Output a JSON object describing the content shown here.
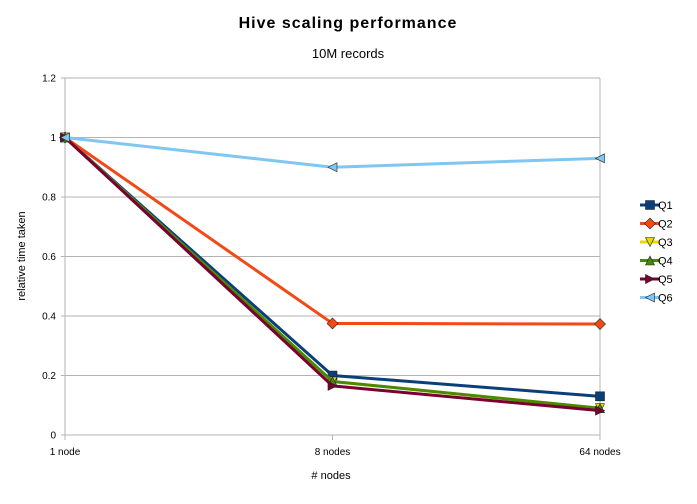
{
  "chart_data": {
    "type": "line",
    "title": "Hive scaling performance",
    "subtitle": "10M records",
    "xlabel": "# nodes",
    "ylabel": "relative time taken",
    "categories": [
      "1 node",
      "8 nodes",
      "64 nodes"
    ],
    "ylim": [
      0,
      1.2
    ],
    "yticks": [
      "0",
      "0.2",
      "0.4",
      "0.6",
      "0.8",
      "1",
      "1.2"
    ],
    "grid": "horizontal",
    "legend_position": "right",
    "series": [
      {
        "name": "Q1",
        "values": [
          1,
          0.2,
          0.13
        ],
        "color": "#0b3f7a",
        "marker": "square"
      },
      {
        "name": "Q2",
        "values": [
          1,
          0.375,
          0.373
        ],
        "color": "#f04a16",
        "marker": "diamond"
      },
      {
        "name": "Q3",
        "values": [
          1,
          0.18,
          0.09
        ],
        "color": "#e8d600",
        "marker": "triangle-down"
      },
      {
        "name": "Q4",
        "values": [
          1,
          0.18,
          0.09
        ],
        "color": "#4a8a00",
        "marker": "triangle-up"
      },
      {
        "name": "Q5",
        "values": [
          1,
          0.165,
          0.082
        ],
        "color": "#7a0030",
        "marker": "triangle-right"
      },
      {
        "name": "Q6",
        "values": [
          1,
          0.9,
          0.93
        ],
        "color": "#7fc6f2",
        "marker": "triangle-left"
      }
    ]
  }
}
